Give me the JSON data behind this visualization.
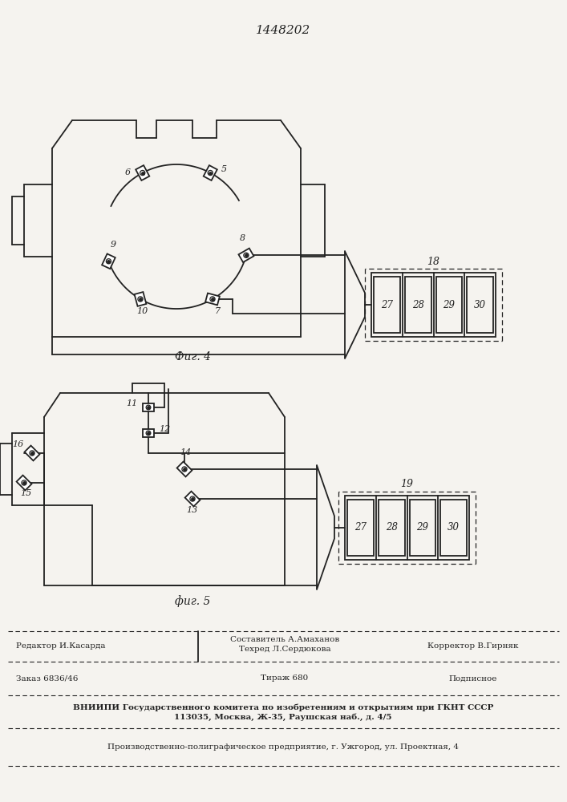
{
  "title": "1448202",
  "title_fontsize": 11,
  "fig4_label": "Фиг. 4",
  "fig5_label": "фиг. 5",
  "bg_color": "#f5f3ef",
  "line_color": "#222222",
  "footer_vniipp": "ВНИИПИ Государственного комитета по изобретениям и открытиям при ГКНТ СССР",
  "footer_address": "113035, Москва, Ж-35, Раушская наб., д. 4/5",
  "footer_production": "Производственно-полиграфическое предприятие, г. Ужгород, ул. Проектная, 4"
}
